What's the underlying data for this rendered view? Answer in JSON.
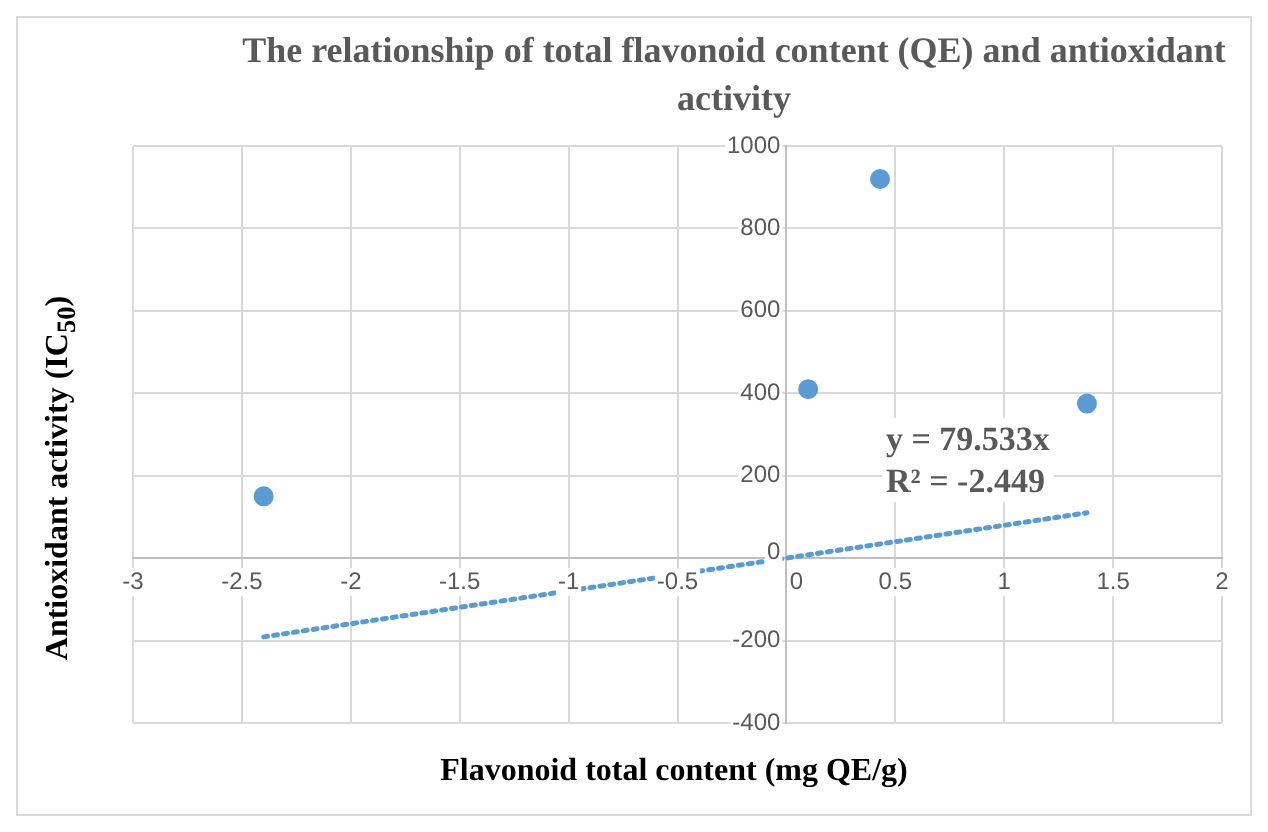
{
  "chart_data": {
    "type": "scatter",
    "title": "The relationship of total flavonoid content (QE) and antioxidant activity",
    "xlabel": "Flavonoid total content (mg QE/g)",
    "ylabel": "Antioxidant activity (IC$_{50}$)",
    "series": [
      {
        "type": "scatter",
        "x": [
          -2.4,
          0.1,
          0.43,
          1.38
        ],
        "values": [
          150,
          410,
          920,
          375
        ],
        "color": "#5b9bd5",
        "marker": "circle"
      },
      {
        "type": "line",
        "x": [
          -2.4,
          1.38
        ],
        "values": [
          -191,
          110
        ],
        "color": "#5b9bd5",
        "line_style": "dotted",
        "marker": "none"
      }
    ],
    "xlim": [
      -3,
      2
    ],
    "xticks": [
      -3,
      -2.5,
      -2,
      -1.5,
      -1,
      -0.5,
      0,
      0.5,
      1,
      1.5,
      2
    ],
    "ylim": [
      -400,
      1000
    ],
    "yticks": [
      -400,
      -200,
      0,
      200,
      400,
      600,
      800,
      1000
    ],
    "grid": true,
    "legend": false,
    "annotations": [
      "y = 79.533x",
      "R² = -2.449"
    ]
  }
}
